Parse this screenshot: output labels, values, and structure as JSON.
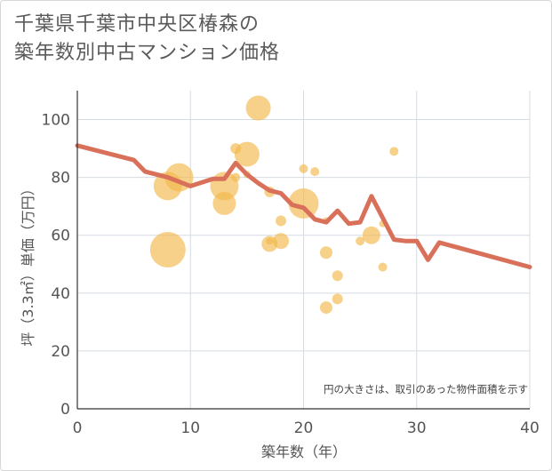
{
  "title_lines": [
    "千葉県千葉市中央区椿森の",
    "築年数別中古マンション価格"
  ],
  "chart_data": {
    "type": "scatter",
    "xlabel": "築年数（年）",
    "ylabel": "坪（3.3㎡）単価（万円）",
    "xlim": [
      0,
      40
    ],
    "ylim": [
      0,
      110
    ],
    "x_ticks": [
      "0",
      "10",
      "20",
      "30",
      "40"
    ],
    "y_ticks": [
      "0",
      "20",
      "40",
      "60",
      "80",
      "100"
    ],
    "note": "円の大きさは、取引のあった物件面積を示す",
    "grid": true,
    "colors": {
      "bubble": "#f2b84b",
      "line": "#d9705a",
      "grid": "#d5dce3"
    },
    "bubbles": [
      {
        "x": 8,
        "y": 55,
        "size": 20
      },
      {
        "x": 8,
        "y": 77,
        "size": 16
      },
      {
        "x": 9,
        "y": 80,
        "size": 16
      },
      {
        "x": 13,
        "y": 77,
        "size": 16
      },
      {
        "x": 13,
        "y": 71,
        "size": 13
      },
      {
        "x": 14,
        "y": 90,
        "size": 6
      },
      {
        "x": 14,
        "y": 80,
        "size": 5
      },
      {
        "x": 15,
        "y": 88,
        "size": 14
      },
      {
        "x": 15,
        "y": 81,
        "size": 4
      },
      {
        "x": 16,
        "y": 104,
        "size": 14
      },
      {
        "x": 17,
        "y": 75,
        "size": 6
      },
      {
        "x": 17,
        "y": 57,
        "size": 9
      },
      {
        "x": 17,
        "y": 58,
        "size": 4
      },
      {
        "x": 18,
        "y": 65,
        "size": 6
      },
      {
        "x": 18,
        "y": 58,
        "size": 9
      },
      {
        "x": 20,
        "y": 83,
        "size": 5
      },
      {
        "x": 20,
        "y": 71,
        "size": 17
      },
      {
        "x": 21,
        "y": 82,
        "size": 5
      },
      {
        "x": 22,
        "y": 65,
        "size": 4
      },
      {
        "x": 22,
        "y": 54,
        "size": 7
      },
      {
        "x": 22,
        "y": 35,
        "size": 7
      },
      {
        "x": 23,
        "y": 46,
        "size": 6
      },
      {
        "x": 23,
        "y": 38,
        "size": 6
      },
      {
        "x": 25,
        "y": 58,
        "size": 5
      },
      {
        "x": 26,
        "y": 60,
        "size": 10
      },
      {
        "x": 27,
        "y": 64,
        "size": 4
      },
      {
        "x": 27,
        "y": 49,
        "size": 5
      },
      {
        "x": 28,
        "y": 89,
        "size": 5
      }
    ],
    "trend_line": [
      [
        0,
        91
      ],
      [
        5,
        86
      ],
      [
        6,
        82
      ],
      [
        8,
        80
      ],
      [
        10,
        77
      ],
      [
        12,
        79.5
      ],
      [
        13,
        79.5
      ],
      [
        14,
        85
      ],
      [
        15,
        81
      ],
      [
        16,
        78
      ],
      [
        17,
        75.5
      ],
      [
        18,
        74.5
      ],
      [
        19,
        70.5
      ],
      [
        20,
        69.5
      ],
      [
        21,
        65.5
      ],
      [
        22,
        64.5
      ],
      [
        23,
        68.5
      ],
      [
        24,
        64
      ],
      [
        25,
        64.5
      ],
      [
        26,
        73.5
      ],
      [
        28,
        58.5
      ],
      [
        29,
        58
      ],
      [
        30,
        58
      ],
      [
        31,
        51.5
      ],
      [
        32,
        57.5
      ],
      [
        40,
        49
      ]
    ]
  }
}
